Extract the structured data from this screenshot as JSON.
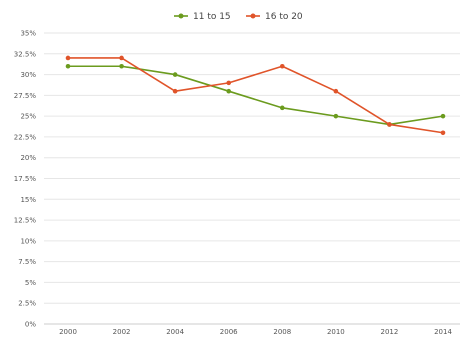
{
  "chart_data": {
    "type": "line",
    "title": "",
    "xlabel": "",
    "ylabel": "",
    "x": [
      2000,
      2002,
      2004,
      2006,
      2008,
      2010,
      2012,
      2014
    ],
    "x_tick_labels": [
      "2000",
      "2002",
      "2004",
      "2006",
      "2008",
      "2010",
      "2012",
      "2014"
    ],
    "ylim": [
      0,
      35
    ],
    "y_ticks": [
      0,
      2.5,
      5,
      7.5,
      10,
      12.5,
      15,
      17.5,
      20,
      22.5,
      25,
      27.5,
      30,
      32.5,
      35
    ],
    "y_tick_labels": [
      "0%",
      "2.5%",
      "5%",
      "7.5%",
      "10%",
      "12.5%",
      "15%",
      "17.5%",
      "20%",
      "22.5%",
      "25%",
      "27.5%",
      "30%",
      "32.5%",
      "35%"
    ],
    "grid": true,
    "legend_position": "top-center",
    "series": [
      {
        "name": "11 to 15",
        "color": "#6b9b1e",
        "values": [
          31,
          31,
          30,
          28,
          26,
          25,
          24,
          25
        ]
      },
      {
        "name": "16 to 20",
        "color": "#e0542a",
        "values": [
          32,
          32,
          28,
          29,
          31,
          28,
          24,
          23
        ]
      }
    ]
  }
}
